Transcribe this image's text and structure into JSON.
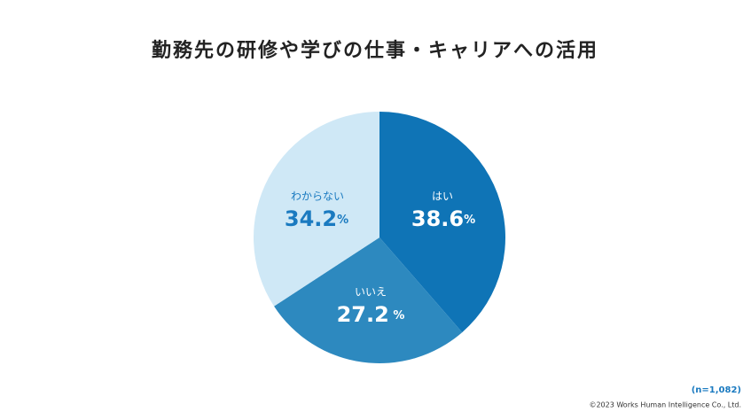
{
  "chart_data": {
    "type": "pie",
    "title": "勤務先の研修や学びの仕事・キャリアへの活用",
    "categories": [
      "はい",
      "いいえ",
      "わからない"
    ],
    "values": [
      38.6,
      27.2,
      34.2
    ],
    "value_labels": [
      "38.6%",
      "27.2 %",
      "34.2%"
    ],
    "colors": [
      "#0f74b6",
      "#2d89bf",
      "#cfe8f6"
    ],
    "note": "(n=1,082)",
    "copyright": "©2023 Works Human Intelligence Co., Ltd."
  }
}
